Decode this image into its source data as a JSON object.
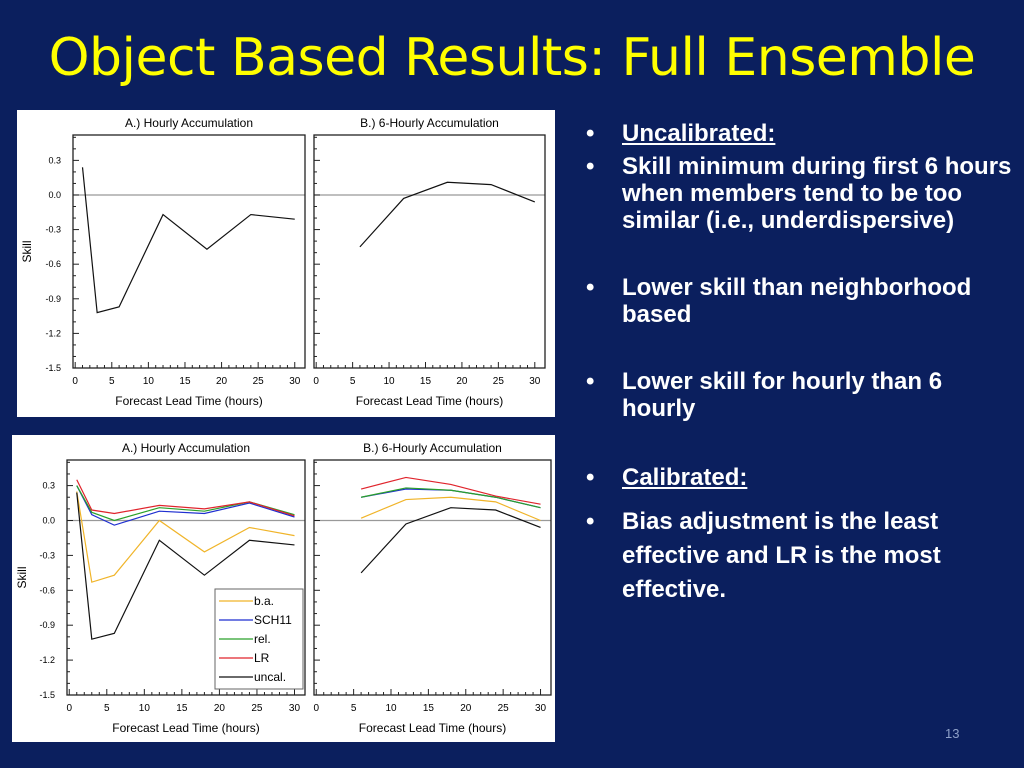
{
  "title": "Object Based Results: Full Ensemble",
  "page_number": "13",
  "bullets": [
    {
      "text": "Uncalibrated:",
      "underline": true
    },
    {
      "text": "Skill minimum during first 6 hours when members tend to be too similar (i.e., underdispersive)"
    },
    {
      "text": "Lower skill than neighborhood based"
    },
    {
      "text": "Lower skill for hourly than 6 hourly"
    },
    {
      "text": "Calibrated:",
      "underline": true
    },
    {
      "text": "Bias adjustment is the least effective and LR is the most effective."
    }
  ],
  "colors": {
    "b.a.": "#f0b429",
    "SCH11": "#1f2fd0",
    "rel.": "#2aa02a",
    "LR": "#e0242c",
    "uncal.": "#111111"
  },
  "chart_data": [
    {
      "type": "line",
      "figure": "top",
      "panels": [
        {
          "title": "A.) Hourly Accumulation",
          "xlabel": "Forecast Lead Time (hours)",
          "ylabel": "Skill",
          "x": [
            1,
            3,
            6,
            12,
            18,
            24,
            30
          ],
          "series": [
            {
              "name": "uncal.",
              "values": [
                0.24,
                -1.02,
                -0.97,
                -0.17,
                -0.47,
                -0.17,
                -0.21
              ]
            }
          ]
        },
        {
          "title": "B.) 6-Hourly Accumulation",
          "xlabel": "Forecast Lead Time (hours)",
          "ylabel": "",
          "x": [
            6,
            12,
            18,
            24,
            30
          ],
          "series": [
            {
              "name": "uncal.",
              "values": [
                -0.45,
                -0.03,
                0.11,
                0.09,
                -0.06
              ]
            }
          ]
        }
      ],
      "xticks": [
        "0",
        "5",
        "10",
        "15",
        "20",
        "25",
        "30"
      ],
      "yticks": [
        "0.3",
        "0.0",
        "-0.3",
        "-0.6",
        "-0.9",
        "-1.2",
        "-1.5"
      ],
      "ylim": [
        -1.5,
        0.52
      ],
      "xlim": [
        -0.3,
        31.4
      ],
      "legend": "none"
    },
    {
      "type": "line",
      "figure": "bottom",
      "panels": [
        {
          "title": "A.) Hourly Accumulation",
          "xlabel": "Forecast Lead Time (hours)",
          "ylabel": "Skill",
          "x": [
            1,
            3,
            6,
            12,
            18,
            24,
            30
          ],
          "series": [
            {
              "name": "b.a.",
              "values": [
                0.25,
                -0.53,
                -0.47,
                0.0,
                -0.27,
                -0.06,
                -0.13
              ]
            },
            {
              "name": "SCH11",
              "values": [
                0.3,
                0.05,
                -0.04,
                0.08,
                0.06,
                0.15,
                0.03
              ]
            },
            {
              "name": "rel.",
              "values": [
                0.3,
                0.07,
                0.0,
                0.11,
                0.08,
                0.16,
                0.05
              ]
            },
            {
              "name": "LR",
              "values": [
                0.35,
                0.09,
                0.06,
                0.13,
                0.1,
                0.16,
                0.04
              ]
            },
            {
              "name": "uncal.",
              "values": [
                0.24,
                -1.02,
                -0.97,
                -0.17,
                -0.47,
                -0.17,
                -0.21
              ]
            }
          ]
        },
        {
          "title": "B.) 6-Hourly Accumulation",
          "xlabel": "Forecast Lead Time (hours)",
          "ylabel": "",
          "x": [
            6,
            12,
            18,
            24,
            30
          ],
          "series": [
            {
              "name": "b.a.",
              "values": [
                0.02,
                0.18,
                0.2,
                0.16,
                0.0
              ]
            },
            {
              "name": "SCH11",
              "values": [
                0.2,
                0.27,
                0.26,
                0.2,
                0.11
              ]
            },
            {
              "name": "rel.",
              "values": [
                0.2,
                0.28,
                0.26,
                0.2,
                0.11
              ]
            },
            {
              "name": "LR",
              "values": [
                0.27,
                0.37,
                0.31,
                0.21,
                0.14
              ]
            },
            {
              "name": "uncal.",
              "values": [
                -0.45,
                -0.03,
                0.11,
                0.09,
                -0.06
              ]
            }
          ]
        }
      ],
      "xticks": [
        "0",
        "5",
        "10",
        "15",
        "20",
        "25",
        "30"
      ],
      "yticks": [
        "0.3",
        "0.0",
        "-0.3",
        "-0.6",
        "-0.9",
        "-1.2",
        "-1.5"
      ],
      "ylim": [
        -1.5,
        0.52
      ],
      "xlim": [
        -0.3,
        31.4
      ],
      "legend": "bottom-right of panel A"
    }
  ]
}
